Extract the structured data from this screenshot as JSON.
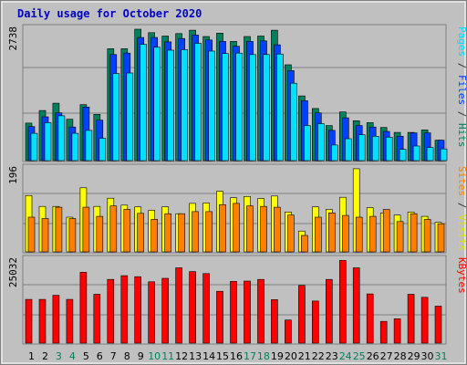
{
  "chart_data": [
    {
      "type": "bar",
      "title": "Daily usage for October 2020",
      "ymax_label": "2738",
      "ymax": 2738,
      "categories": [
        "1",
        "2",
        "3",
        "4",
        "5",
        "6",
        "7",
        "8",
        "9",
        "10",
        "11",
        "12",
        "13",
        "14",
        "15",
        "16",
        "17",
        "18",
        "19",
        "20",
        "21",
        "22",
        "23",
        "24",
        "25",
        "26",
        "27",
        "28",
        "29",
        "30",
        "31"
      ],
      "weekend_days": [
        "3",
        "4",
        "10",
        "11",
        "17",
        "18",
        "24",
        "25",
        "31"
      ],
      "series": [
        {
          "name": "Hits",
          "color": "#00805c",
          "values": [
            770,
            1030,
            1180,
            850,
            1150,
            950,
            2300,
            2300,
            2700,
            2630,
            2560,
            2610,
            2680,
            2550,
            2620,
            2450,
            2550,
            2560,
            2680,
            1970,
            1330,
            1070,
            720,
            1000,
            820,
            780,
            680,
            580,
            580,
            630,
            420
          ]
        },
        {
          "name": "Files",
          "color": "#0040ff",
          "values": [
            700,
            900,
            980,
            690,
            1100,
            830,
            2180,
            2210,
            2530,
            2530,
            2440,
            2510,
            2580,
            2480,
            2450,
            2350,
            2450,
            2460,
            2380,
            1850,
            1230,
            980,
            620,
            880,
            720,
            690,
            600,
            500,
            570,
            570,
            420
          ]
        },
        {
          "name": "Pages",
          "color": "#00e0ff",
          "values": [
            560,
            780,
            920,
            560,
            620,
            460,
            1790,
            1800,
            2390,
            2330,
            2270,
            2280,
            2410,
            2250,
            2200,
            2210,
            2180,
            2180,
            2190,
            1590,
            720,
            760,
            320,
            450,
            530,
            500,
            480,
            230,
            300,
            270,
            240
          ]
        }
      ]
    },
    {
      "type": "bar",
      "ymax_label": "196",
      "ymax": 196,
      "categories": [
        "1",
        "2",
        "3",
        "4",
        "5",
        "6",
        "7",
        "8",
        "9",
        "10",
        "11",
        "12",
        "13",
        "14",
        "15",
        "16",
        "17",
        "18",
        "19",
        "20",
        "21",
        "22",
        "23",
        "24",
        "25",
        "26",
        "27",
        "28",
        "29",
        "30",
        "31"
      ],
      "series": [
        {
          "name": "Visits",
          "color": "#ffff00",
          "values": [
            130,
            105,
            105,
            80,
            148,
            105,
            124,
            108,
            104,
            96,
            104,
            88,
            112,
            113,
            140,
            125,
            128,
            123,
            129,
            92,
            48,
            104,
            98,
            126,
            192,
            102,
            90,
            85,
            92,
            82,
            68
          ]
        },
        {
          "name": "Sites",
          "color": "#ff8000",
          "values": [
            80,
            77,
            103,
            77,
            103,
            82,
            106,
            98,
            89,
            75,
            88,
            88,
            93,
            93,
            109,
            112,
            106,
            105,
            103,
            85,
            38,
            80,
            90,
            84,
            80,
            82,
            98,
            70,
            88,
            75,
            65
          ]
        }
      ]
    },
    {
      "type": "bar",
      "ymax_label": "25032",
      "ymax": 25032,
      "categories": [
        "1",
        "2",
        "3",
        "4",
        "5",
        "6",
        "7",
        "8",
        "9",
        "10",
        "11",
        "12",
        "13",
        "14",
        "15",
        "16",
        "17",
        "18",
        "19",
        "20",
        "21",
        "22",
        "23",
        "24",
        "25",
        "26",
        "27",
        "28",
        "29",
        "30",
        "31"
      ],
      "series": [
        {
          "name": "KBytes",
          "color": "#ff0000",
          "values": [
            12900,
            12900,
            14100,
            12900,
            20900,
            14400,
            18800,
            19900,
            19600,
            18100,
            19100,
            22200,
            21100,
            20500,
            15300,
            18200,
            18300,
            18800,
            12800,
            6800,
            17000,
            12400,
            18800,
            24400,
            22200,
            14500,
            6400,
            7200,
            14400,
            13500,
            10900
          ]
        }
      ]
    }
  ],
  "axis_labels": {
    "top_right": [
      {
        "text": "Pages",
        "color": "#00e0ff"
      },
      {
        "text": " / ",
        "color": "#333333"
      },
      {
        "text": "Files",
        "color": "#0040ff"
      },
      {
        "text": " / ",
        "color": "#333333"
      },
      {
        "text": "Hits",
        "color": "#00805c"
      }
    ],
    "mid_right": [
      {
        "text": "Sites",
        "color": "#ff8000"
      },
      {
        "text": " / ",
        "color": "#333333"
      },
      {
        "text": "Visits",
        "color": "#e0e000"
      }
    ],
    "bottom_right": [
      {
        "text": "KBytes",
        "color": "#ff0000"
      }
    ]
  },
  "colors": {
    "title": "#0000c0",
    "weekday_label": "#000000",
    "weekend_label": "#00805c",
    "panel_bg": "#c0c0c0",
    "grid": "#808080"
  }
}
